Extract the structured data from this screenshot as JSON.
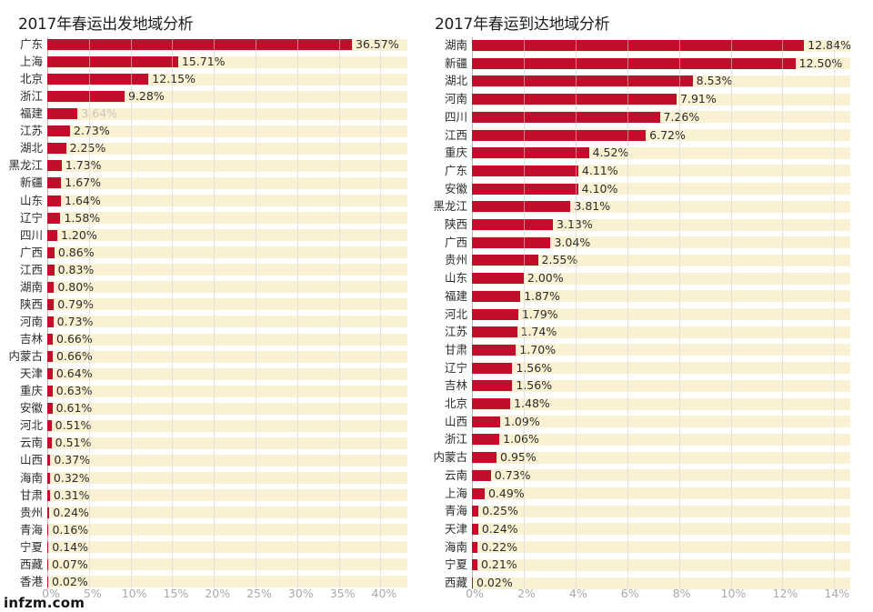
{
  "watermark": "infzm.com",
  "colors": {
    "bar": "#c30d2d",
    "stripe": "#f9f1d2",
    "grid": "#cfcac0",
    "tick_text": "#a9a9a9"
  },
  "chart_data": [
    {
      "type": "bar",
      "orientation": "horizontal",
      "title": "2017年春运出发地域分析",
      "xlabel": "",
      "ylabel": "",
      "unit": "%",
      "xlim": [
        0,
        40
      ],
      "xticks": [
        0,
        5,
        10,
        15,
        20,
        25,
        30,
        35,
        40
      ],
      "xtick_labels": [
        "0%",
        "5%",
        "10%",
        "15%",
        "20%",
        "25%",
        "30%",
        "35%",
        "40%"
      ],
      "grid": true,
      "legend": "none",
      "categories": [
        "广东",
        "上海",
        "北京",
        "浙江",
        "福建",
        "江苏",
        "湖北",
        "黑龙江",
        "新疆",
        "山东",
        "辽宁",
        "四川",
        "广西",
        "江西",
        "湖南",
        "陕西",
        "河南",
        "吉林",
        "内蒙古",
        "天津",
        "重庆",
        "安徽",
        "河北",
        "云南",
        "山西",
        "海南",
        "甘肃",
        "贵州",
        "青海",
        "宁夏",
        "西藏",
        "香港"
      ],
      "values": [
        36.57,
        15.71,
        12.15,
        9.28,
        3.64,
        2.73,
        2.25,
        1.73,
        1.67,
        1.64,
        1.58,
        1.2,
        0.86,
        0.83,
        0.8,
        0.79,
        0.73,
        0.66,
        0.66,
        0.64,
        0.63,
        0.61,
        0.51,
        0.51,
        0.37,
        0.32,
        0.31,
        0.24,
        0.16,
        0.14,
        0.07,
        0.02
      ],
      "value_labels": [
        "36.57%",
        "15.71%",
        "12.15%",
        "9.28%",
        "3.64%",
        "2.73%",
        "2.25%",
        "1.73%",
        "1.67%",
        "1.64%",
        "1.58%",
        "1.20%",
        "0.86%",
        "0.83%",
        "0.80%",
        "0.79%",
        "0.73%",
        "0.66%",
        "0.66%",
        "0.64%",
        "0.63%",
        "0.61%",
        "0.51%",
        "0.51%",
        "0.37%",
        "0.32%",
        "0.31%",
        "0.24%",
        "0.16%",
        "0.14%",
        "0.07%",
        "0.02%"
      ]
    },
    {
      "type": "bar",
      "orientation": "horizontal",
      "title": "2017年春运到达地域分析",
      "xlabel": "",
      "ylabel": "",
      "unit": "%",
      "xlim": [
        0,
        14
      ],
      "xticks": [
        0,
        2,
        4,
        6,
        8,
        10,
        12,
        14
      ],
      "xtick_labels": [
        "0%",
        "2%",
        "4%",
        "6%",
        "8%",
        "10%",
        "12%",
        "14%"
      ],
      "grid": true,
      "legend": "none",
      "categories": [
        "湖南",
        "新疆",
        "湖北",
        "河南",
        "四川",
        "江西",
        "重庆",
        "广东",
        "安徽",
        "黑龙江",
        "陕西",
        "广西",
        "贵州",
        "山东",
        "福建",
        "河北",
        "江苏",
        "甘肃",
        "辽宁",
        "吉林",
        "北京",
        "山西",
        "浙江",
        "内蒙古",
        "云南",
        "上海",
        "青海",
        "天津",
        "海南",
        "宁夏",
        "西藏"
      ],
      "values": [
        12.84,
        12.5,
        8.53,
        7.91,
        7.26,
        6.72,
        4.52,
        4.11,
        4.1,
        3.81,
        3.13,
        3.04,
        2.55,
        2.0,
        1.87,
        1.79,
        1.74,
        1.7,
        1.56,
        1.56,
        1.48,
        1.09,
        1.06,
        0.95,
        0.73,
        0.49,
        0.25,
        0.24,
        0.22,
        0.21,
        0.02
      ],
      "value_labels": [
        "12.84%",
        "12.50%",
        "8.53%",
        "7.91%",
        "7.26%",
        "6.72%",
        "4.52%",
        "4.11%",
        "4.10%",
        "3.81%",
        "3.13%",
        "3.04%",
        "2.55%",
        "2.00%",
        "1.87%",
        "1.79%",
        "1.74%",
        "1.70%",
        "1.56%",
        "1.56%",
        "1.48%",
        "1.09%",
        "1.06%",
        "0.95%",
        "0.73%",
        "0.49%",
        "0.25%",
        "0.24%",
        "0.22%",
        "0.21%",
        "0.02%"
      ]
    }
  ]
}
